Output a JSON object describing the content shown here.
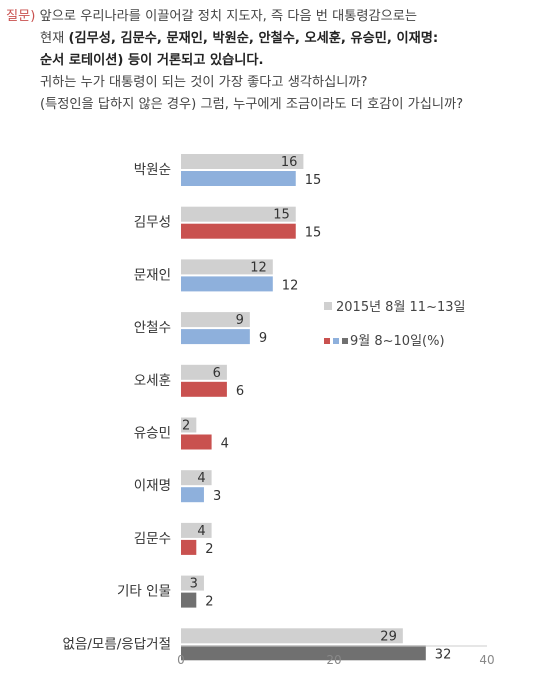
{
  "question": {
    "label": "질문)",
    "line1": "앞으로 우리나라를 이끌어갈 정치 지도자, 즉 다음 번 대통령감으로는",
    "line2_prefix": "현재",
    "line2_bold": "(김무성, 김문수, 문재인, 박원순, 안철수, 오세훈, 유승민, 이재명:",
    "line3_bold": "순서 로테이션) 등이 거론되고 있습니다.",
    "line4": "귀하는 누가 대통령이 되는 것이 가장 좋다고 생각하십니까?",
    "line5": "(특정인을 답하지 않은 경우) 그럼, 누구에게 조금이라도 더 호감이 가십니까?"
  },
  "chart_data": {
    "type": "bar",
    "orientation": "horizontal",
    "categories": [
      "박원순",
      "김무성",
      "문재인",
      "안철수",
      "오세훈",
      "유승민",
      "이재명",
      "김문수",
      "기타 인물",
      "없음/모름/응답거절"
    ],
    "series": [
      {
        "name": "2015년 8월 11~13일",
        "values": [
          16,
          15,
          12,
          9,
          6,
          2,
          4,
          4,
          3,
          29
        ]
      },
      {
        "name": "9월 8~10일(%)",
        "values": [
          15,
          15,
          12,
          9,
          6,
          4,
          3,
          2,
          2,
          32
        ]
      }
    ],
    "series_colors": {
      "previous": "#d0d0d0",
      "current_by_category": [
        "#8eb0dc",
        "#c9514f",
        "#8eb0dc",
        "#8eb0dc",
        "#c9514f",
        "#c9514f",
        "#8eb0dc",
        "#c9514f",
        "#707070",
        "#707070"
      ]
    },
    "xlim": [
      0,
      40
    ],
    "xticks": [
      0,
      20,
      40
    ],
    "grid": false,
    "legend_position": "right"
  }
}
